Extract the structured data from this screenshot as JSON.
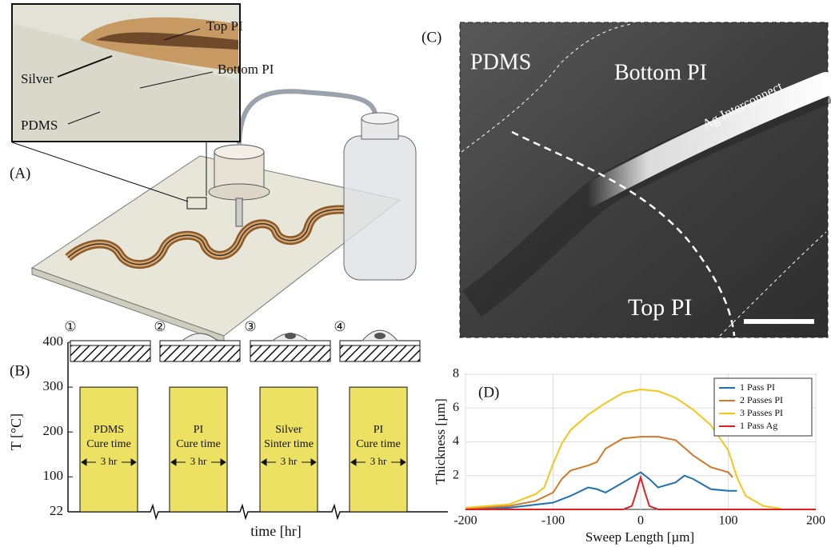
{
  "panels": {
    "a": {
      "label": "(A)",
      "callouts": [
        "Top PI",
        "Bottom PI",
        "Silver",
        "PDMS"
      ]
    },
    "c": {
      "label": "(C)",
      "regions": [
        "PDMS",
        "Bottom PI",
        "Ag Interconnect",
        "Top PI"
      ]
    }
  },
  "chart_data": [
    {
      "type": "bar",
      "label": "(B)",
      "ylabel": "T [°C]",
      "xlabel": "time  [hr]",
      "steps": [
        "①",
        "②",
        "③",
        "④"
      ],
      "categories": [
        [
          "PDMS",
          "Cure time"
        ],
        [
          "PI",
          "Cure time"
        ],
        [
          "Silver",
          "Sinter time"
        ],
        [
          "PI",
          "Cure time"
        ]
      ],
      "durations": [
        "3 hr",
        "3 hr",
        "3 hr",
        "3 hr"
      ],
      "values": [
        300,
        300,
        300,
        300
      ],
      "color": "#ede163",
      "ylim": [
        22,
        400
      ],
      "yticks": [
        22,
        100,
        200,
        300,
        400
      ]
    },
    {
      "type": "line",
      "label": "(D)",
      "ylabel": "Thickness [µm]",
      "xlabel": "Sweep Length [µm]",
      "xlim": [
        -200,
        200
      ],
      "xticks": [
        -200,
        -100,
        0,
        100,
        200
      ],
      "ylim": [
        0,
        8
      ],
      "yticks": [
        2,
        4,
        6,
        8
      ],
      "grid": true,
      "legend": "top-right",
      "series": [
        {
          "name": "1 Pass PI",
          "color": "#1f6fb4",
          "x": [
            -200,
            -150,
            -100,
            -80,
            -60,
            -50,
            -40,
            -20,
            0,
            10,
            20,
            40,
            50,
            60,
            80,
            100,
            110
          ],
          "values": [
            0,
            0.1,
            0.4,
            0.8,
            1.3,
            1.2,
            1.0,
            1.6,
            2.2,
            1.8,
            1.3,
            1.6,
            2.0,
            1.8,
            1.2,
            1.1,
            1.1
          ]
        },
        {
          "name": "2 Passes PI",
          "color": "#d2782a",
          "x": [
            -200,
            -150,
            -120,
            -100,
            -90,
            -80,
            -60,
            -50,
            -40,
            -20,
            0,
            20,
            40,
            60,
            80,
            100,
            105
          ],
          "values": [
            0.05,
            0.2,
            0.5,
            1.0,
            1.8,
            2.3,
            2.6,
            2.8,
            3.6,
            4.2,
            4.3,
            4.3,
            4.1,
            3.2,
            2.5,
            2.2,
            1.9
          ]
        },
        {
          "name": "3 Passes PI",
          "color": "#f5c518",
          "x": [
            -200,
            -150,
            -120,
            -110,
            -100,
            -90,
            -80,
            -60,
            -40,
            -20,
            0,
            20,
            40,
            60,
            80,
            100,
            110,
            120,
            140,
            160
          ],
          "values": [
            0.1,
            0.3,
            0.9,
            1.3,
            2.7,
            3.9,
            4.7,
            5.6,
            6.3,
            6.9,
            7.1,
            7.0,
            6.6,
            5.9,
            5.0,
            3.5,
            1.9,
            0.8,
            0.2,
            0.05
          ]
        },
        {
          "name": "1 Pass Ag",
          "color": "#e02020",
          "x": [
            -200,
            -20,
            -10,
            -5,
            0,
            5,
            10,
            20,
            200
          ],
          "values": [
            0,
            0,
            0.2,
            1.0,
            1.9,
            1.0,
            0.2,
            0,
            0
          ]
        }
      ]
    }
  ]
}
